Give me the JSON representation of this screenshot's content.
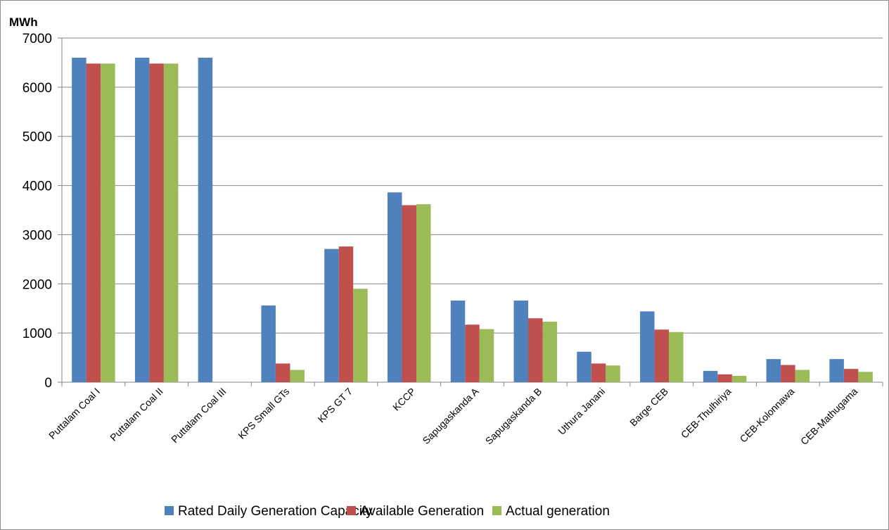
{
  "chart_data": {
    "type": "bar",
    "title": "",
    "xlabel": "",
    "ylabel": "MWh",
    "ylim": [
      0,
      7000
    ],
    "y_ticks": [
      0,
      1000,
      2000,
      3000,
      4000,
      5000,
      6000,
      7000
    ],
    "grid": "horizontal major gridlines",
    "legend_position": "bottom",
    "categories": [
      "Puttalam Coal I",
      "Puttalam Coal II",
      "Puttalam Coal III",
      "KPS Small GTs",
      "KPS GT 7",
      "KCCP",
      "Sapugaskanda A",
      "Sapugaskanda B",
      "Uthura Janani",
      "Barge CEB",
      "CEB-Thulhiriya",
      "CEB-Kolonnawa",
      "CEB-Mathugama"
    ],
    "series": [
      {
        "name": "Rated Daily Generation Capacity",
        "color": "#4F81BD",
        "values": [
          6600,
          6600,
          6600,
          1560,
          2710,
          3860,
          1660,
          1660,
          620,
          1440,
          230,
          470,
          470
        ]
      },
      {
        "name": "Available Generation",
        "color": "#C0504D",
        "values": [
          6480,
          6480,
          0,
          380,
          2760,
          3600,
          1170,
          1300,
          380,
          1070,
          160,
          350,
          270
        ]
      },
      {
        "name": "Actual generation",
        "color": "#9BBB59",
        "values": [
          6480,
          6480,
          0,
          250,
          1900,
          3620,
          1080,
          1230,
          340,
          1020,
          130,
          250,
          210
        ]
      }
    ]
  }
}
